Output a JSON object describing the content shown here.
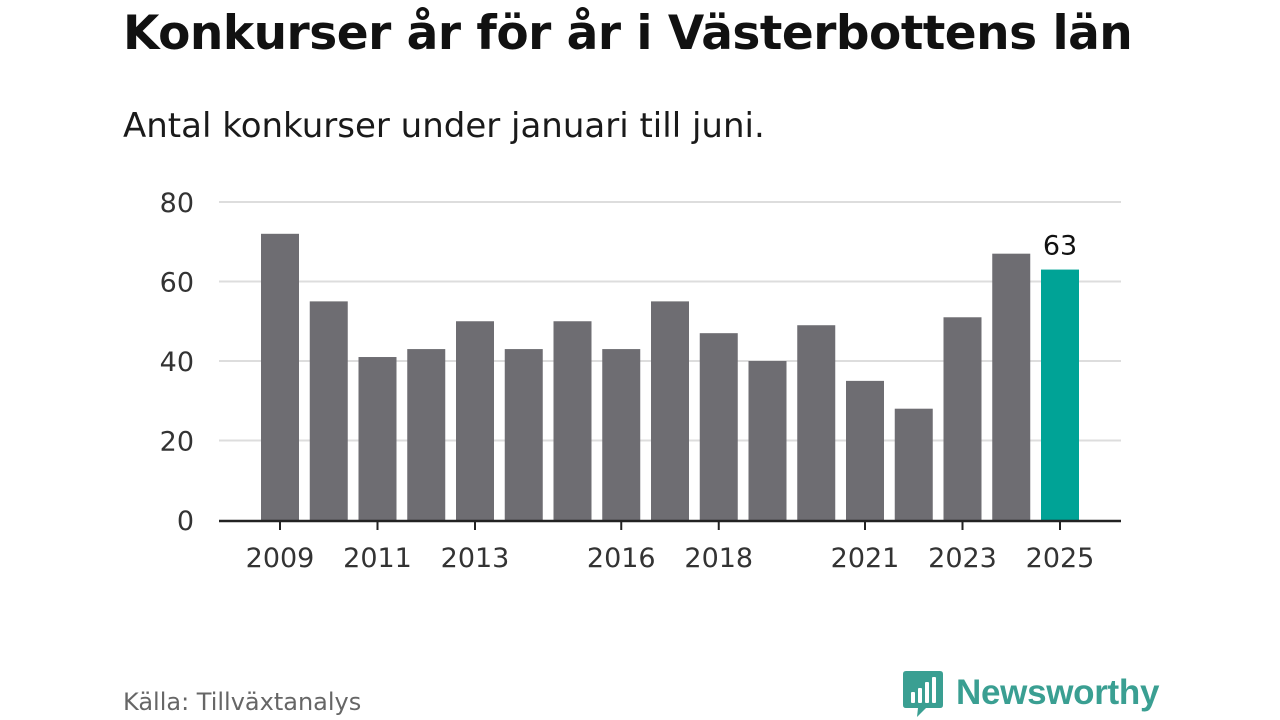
{
  "header": {
    "title": "Konkurser år för år i Västerbottens län",
    "subtitle": "Antal konkurser under januari till juni."
  },
  "footer": {
    "source": "Källa: Tillväxtanalys",
    "brand": "Newsworthy"
  },
  "colors": {
    "bar": "#6e6d72",
    "highlight": "#00a396",
    "brand": "#3a9f92",
    "grid": "#dddddd",
    "axis": "#222222"
  },
  "chart_data": {
    "type": "bar",
    "categories": [
      "2009",
      "2010",
      "2011",
      "2012",
      "2013",
      "2014",
      "2015",
      "2016",
      "2017",
      "2018",
      "2019",
      "2020",
      "2021",
      "2022",
      "2023",
      "2024",
      "2025"
    ],
    "values": [
      72,
      55,
      41,
      43,
      50,
      43,
      50,
      43,
      55,
      47,
      40,
      49,
      35,
      28,
      51,
      67,
      63
    ],
    "highlight_category": "2025",
    "data_labels": [
      {
        "category": "2025",
        "text": "63"
      }
    ],
    "x_tick_labels": [
      "2009",
      "2011",
      "2013",
      "2016",
      "2018",
      "2021",
      "2023",
      "2025"
    ],
    "y_ticks": [
      0,
      20,
      40,
      60,
      80
    ],
    "ylim": [
      0,
      80
    ],
    "grid": true,
    "xlabel": "",
    "ylabel": ""
  }
}
